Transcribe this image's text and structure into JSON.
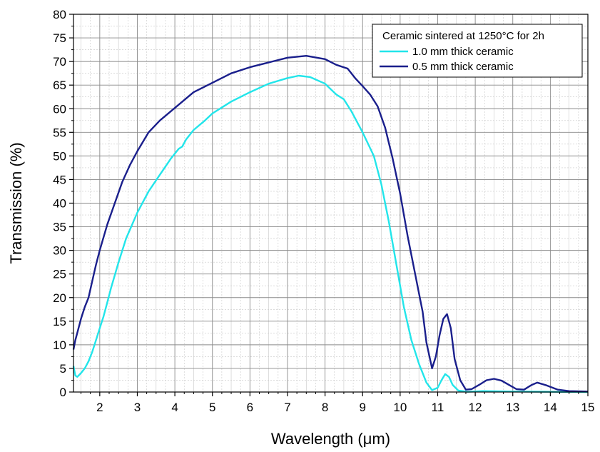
{
  "chart_data": {
    "type": "line",
    "xlabel": "Wavelength (μm)",
    "ylabel": "Transmission (%)",
    "xlim": [
      1.3,
      15
    ],
    "ylim": [
      0,
      80
    ],
    "x_ticks": [
      2,
      3,
      4,
      5,
      6,
      7,
      8,
      9,
      10,
      11,
      12,
      13,
      14,
      15
    ],
    "y_ticks": [
      0,
      5,
      10,
      15,
      20,
      25,
      30,
      35,
      40,
      45,
      50,
      55,
      60,
      65,
      70,
      75,
      80
    ],
    "grid": true,
    "legend": {
      "placement": "top-right",
      "title": "Ceramic sintered at 1250°C for 2h"
    },
    "series": [
      {
        "name": "1.0 mm thick ceramic",
        "color": "#22e5ea",
        "points": [
          [
            1.3,
            5.5
          ],
          [
            1.35,
            3.5
          ],
          [
            1.4,
            3.2
          ],
          [
            1.5,
            4.0
          ],
          [
            1.6,
            5.0
          ],
          [
            1.7,
            6.5
          ],
          [
            1.8,
            8.5
          ],
          [
            1.9,
            11.0
          ],
          [
            2.0,
            13.5
          ],
          [
            2.1,
            16.0
          ],
          [
            2.2,
            19.0
          ],
          [
            2.3,
            22.0
          ],
          [
            2.5,
            27.5
          ],
          [
            2.7,
            32.5
          ],
          [
            3.0,
            38.0
          ],
          [
            3.3,
            42.5
          ],
          [
            3.6,
            46.0
          ],
          [
            3.9,
            49.5
          ],
          [
            4.1,
            51.5
          ],
          [
            4.2,
            52.0
          ],
          [
            4.3,
            53.5
          ],
          [
            4.5,
            55.5
          ],
          [
            4.8,
            57.5
          ],
          [
            5.0,
            59.0
          ],
          [
            5.5,
            61.5
          ],
          [
            6.0,
            63.5
          ],
          [
            6.5,
            65.3
          ],
          [
            7.0,
            66.5
          ],
          [
            7.3,
            67.0
          ],
          [
            7.6,
            66.7
          ],
          [
            8.0,
            65.3
          ],
          [
            8.3,
            63.0
          ],
          [
            8.5,
            62.0
          ],
          [
            8.7,
            59.5
          ],
          [
            9.0,
            55.0
          ],
          [
            9.3,
            50.0
          ],
          [
            9.5,
            44.0
          ],
          [
            9.7,
            36.0
          ],
          [
            9.9,
            27.0
          ],
          [
            10.1,
            18.0
          ],
          [
            10.3,
            11.0
          ],
          [
            10.5,
            6.0
          ],
          [
            10.7,
            2.0
          ],
          [
            10.85,
            0.4
          ],
          [
            11.0,
            0.9
          ],
          [
            11.1,
            2.5
          ],
          [
            11.2,
            3.8
          ],
          [
            11.3,
            3.2
          ],
          [
            11.4,
            1.5
          ],
          [
            11.55,
            0.3
          ],
          [
            11.8,
            0.05
          ],
          [
            12.2,
            0.2
          ],
          [
            12.5,
            0.15
          ],
          [
            13.0,
            0.1
          ],
          [
            14.0,
            0.05
          ],
          [
            15.0,
            0.0
          ]
        ]
      },
      {
        "name": "0.5 mm thick ceramic",
        "color": "#1a1f8c",
        "points": [
          [
            1.3,
            9.0
          ],
          [
            1.35,
            11.0
          ],
          [
            1.4,
            12.5
          ],
          [
            1.5,
            15.5
          ],
          [
            1.6,
            18.0
          ],
          [
            1.7,
            20.0
          ],
          [
            1.8,
            23.5
          ],
          [
            1.9,
            27.0
          ],
          [
            2.0,
            30.0
          ],
          [
            2.2,
            35.5
          ],
          [
            2.4,
            40.0
          ],
          [
            2.6,
            44.5
          ],
          [
            2.8,
            48.0
          ],
          [
            3.0,
            51.0
          ],
          [
            3.3,
            55.0
          ],
          [
            3.6,
            57.5
          ],
          [
            3.9,
            59.5
          ],
          [
            4.2,
            61.5
          ],
          [
            4.5,
            63.5
          ],
          [
            5.0,
            65.5
          ],
          [
            5.5,
            67.5
          ],
          [
            6.0,
            68.8
          ],
          [
            6.5,
            69.8
          ],
          [
            7.0,
            70.8
          ],
          [
            7.5,
            71.2
          ],
          [
            8.0,
            70.5
          ],
          [
            8.3,
            69.3
          ],
          [
            8.6,
            68.5
          ],
          [
            8.8,
            66.5
          ],
          [
            9.0,
            64.8
          ],
          [
            9.2,
            63.0
          ],
          [
            9.4,
            60.5
          ],
          [
            9.6,
            56.0
          ],
          [
            9.8,
            49.5
          ],
          [
            10.0,
            42.0
          ],
          [
            10.2,
            33.0
          ],
          [
            10.4,
            25.0
          ],
          [
            10.6,
            17.0
          ],
          [
            10.7,
            10.5
          ],
          [
            10.85,
            5.0
          ],
          [
            10.95,
            7.5
          ],
          [
            11.05,
            12.0
          ],
          [
            11.15,
            15.5
          ],
          [
            11.25,
            16.5
          ],
          [
            11.35,
            13.5
          ],
          [
            11.45,
            7.0
          ],
          [
            11.6,
            2.5
          ],
          [
            11.75,
            0.5
          ],
          [
            11.9,
            0.6
          ],
          [
            12.1,
            1.5
          ],
          [
            12.3,
            2.5
          ],
          [
            12.5,
            2.8
          ],
          [
            12.7,
            2.4
          ],
          [
            12.9,
            1.5
          ],
          [
            13.1,
            0.6
          ],
          [
            13.3,
            0.5
          ],
          [
            13.5,
            1.5
          ],
          [
            13.65,
            2.0
          ],
          [
            13.9,
            1.4
          ],
          [
            14.2,
            0.5
          ],
          [
            14.5,
            0.2
          ],
          [
            15.0,
            0.1
          ]
        ]
      }
    ]
  }
}
